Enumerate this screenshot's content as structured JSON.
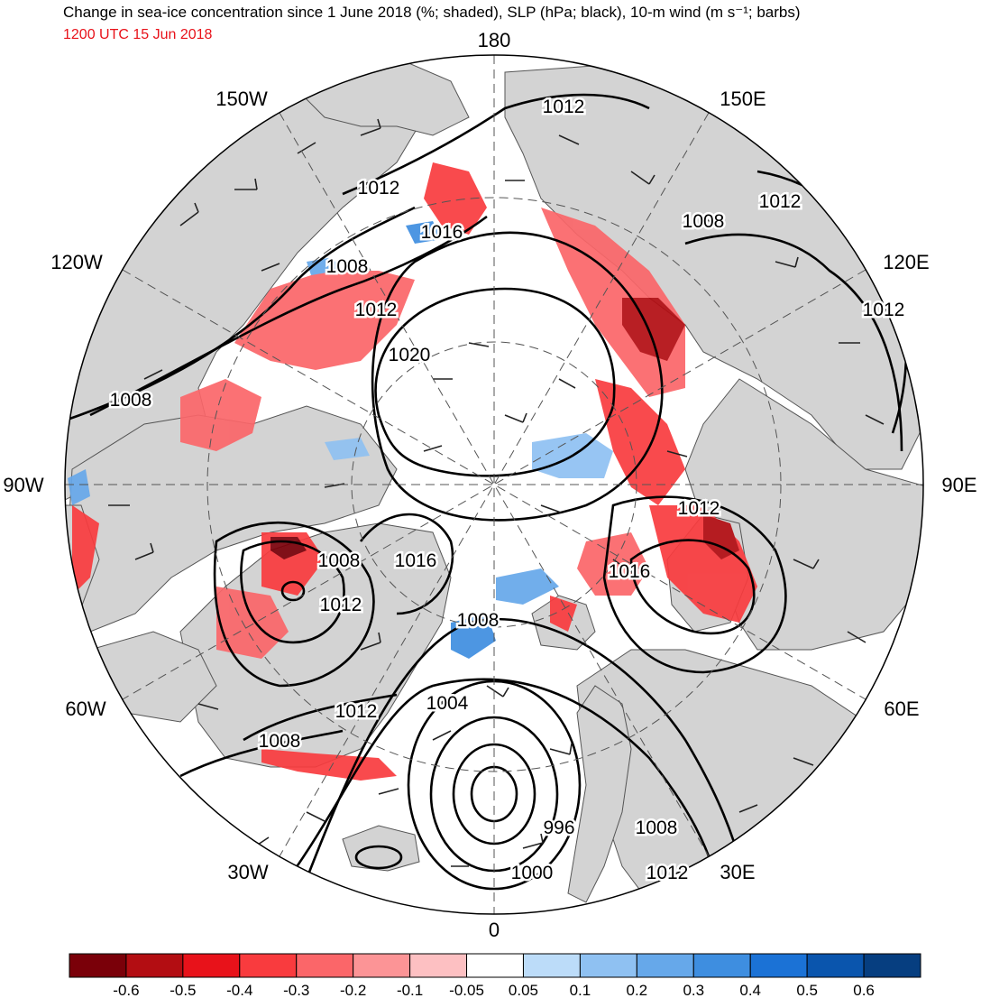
{
  "header": {
    "title": "Change in sea-ice concentration since 1 June 2018 (%; shaded), SLP (hPa; black), 10-m wind (m s⁻¹; barbs)",
    "valid_time": "1200 UTC 15 Jun 2018"
  },
  "map": {
    "projection": "north-polar-stereographic",
    "longitude_labels": [
      "180",
      "150E",
      "120E",
      "90E",
      "60E",
      "30E",
      "0",
      "30W",
      "60W",
      "90W",
      "120W",
      "150W"
    ],
    "slp_labels": [
      "1012",
      "1012",
      "1008",
      "1012",
      "1012",
      "1016",
      "1008",
      "1012",
      "1020",
      "1008",
      "1012",
      "1016",
      "1008",
      "1012",
      "1008",
      "1004",
      "1012",
      "1008",
      "1016",
      "996",
      "1008",
      "1000",
      "1012"
    ],
    "land_color": "#d3d3d3",
    "ocean_color": "#ffffff"
  },
  "colorbar": {
    "colors": [
      "#7a0009",
      "#b30d12",
      "#e8121a",
      "#f93b3e",
      "#fb6669",
      "#fc9496",
      "#fdc0c2",
      "#ffffff",
      "#bcdcf9",
      "#8fc1f2",
      "#66a8ea",
      "#3e8ee0",
      "#1b72d6",
      "#0a55ad",
      "#063e80"
    ],
    "tick_labels": [
      "-0.6",
      "-0.5",
      "-0.4",
      "-0.3",
      "-0.2",
      "-0.1",
      "-0.05",
      "0.05",
      "0.1",
      "0.2",
      "0.3",
      "0.4",
      "0.5",
      "0.6"
    ]
  }
}
